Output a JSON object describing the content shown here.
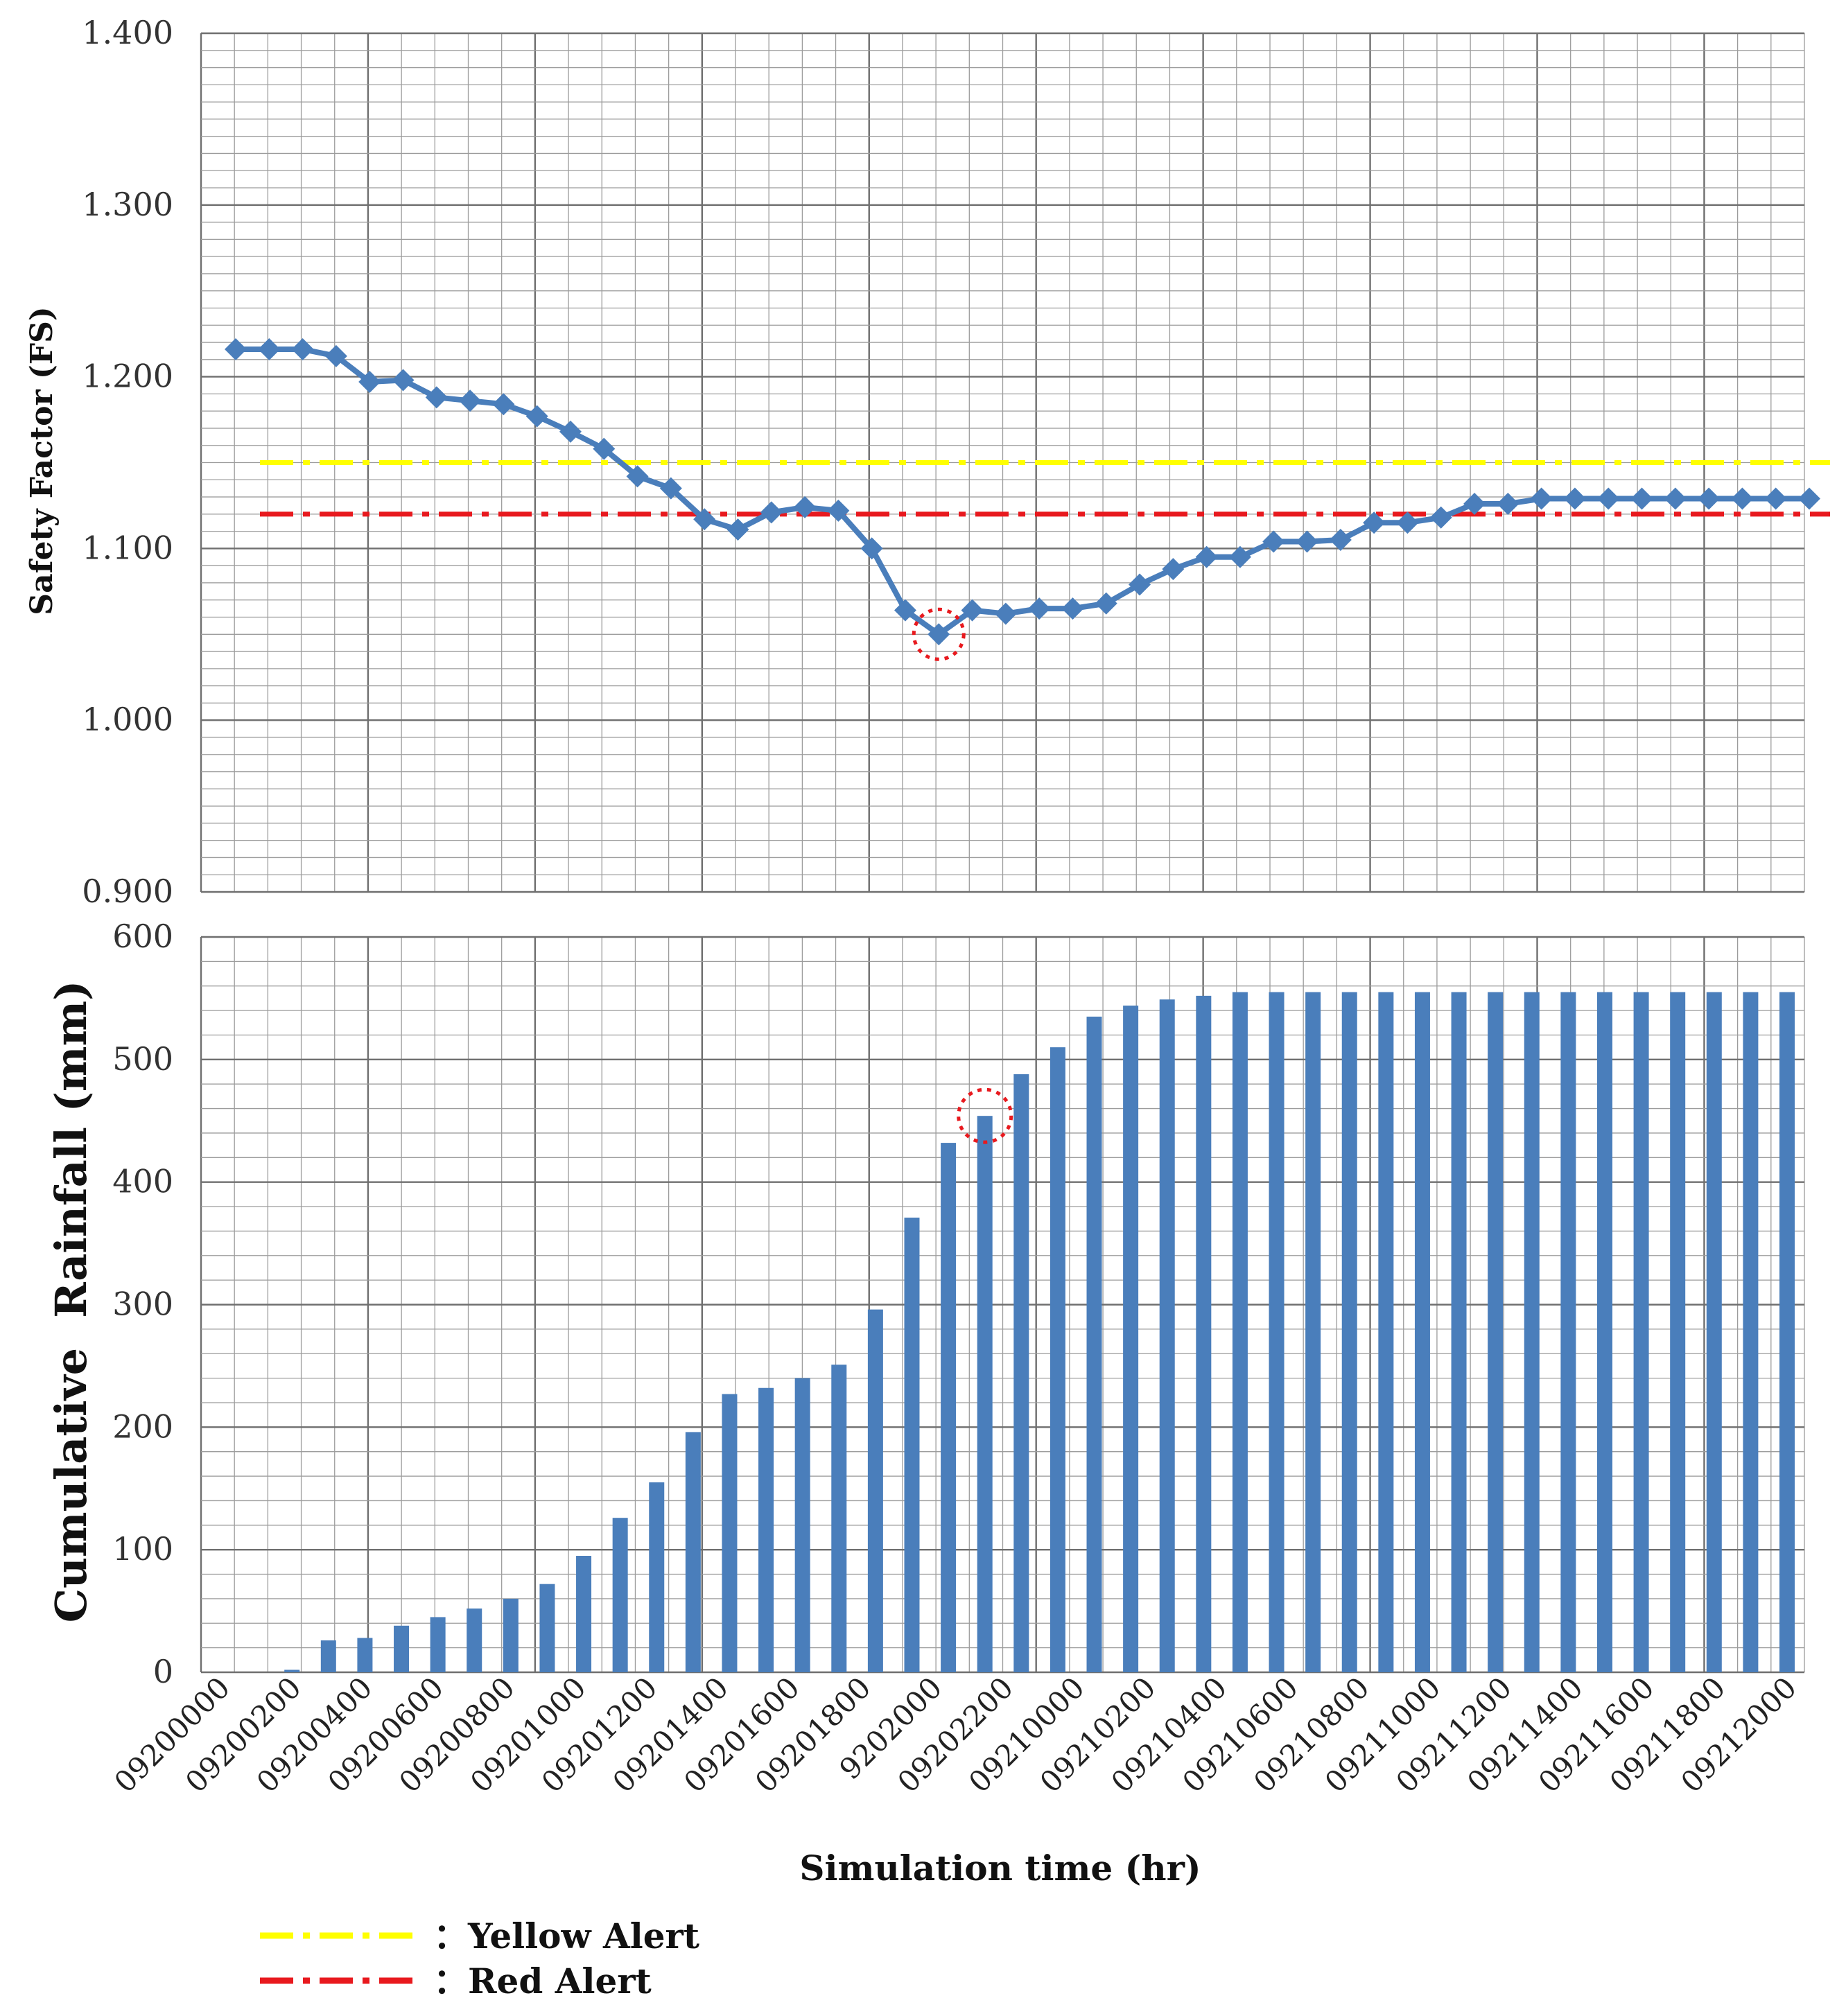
{
  "chart_data": [
    {
      "type": "line",
      "title": "",
      "xlabel": "",
      "ylabel": "Safety Factor (FS)",
      "ylim": [
        0.9,
        1.4
      ],
      "yticks": [
        "1.400",
        "1.300",
        "1.200",
        "1.100",
        "1.000",
        "0.900"
      ],
      "grid": true,
      "series": [
        {
          "name": "Safety Factor",
          "color": "#4a7ebb",
          "values": [
            1.216,
            1.216,
            1.216,
            1.212,
            1.197,
            1.198,
            1.188,
            1.186,
            1.184,
            1.177,
            1.168,
            1.158,
            1.142,
            1.135,
            1.117,
            1.111,
            1.121,
            1.124,
            1.122,
            1.1,
            1.064,
            1.05,
            1.064,
            1.062,
            1.065,
            1.065,
            1.068,
            1.079,
            1.088,
            1.095,
            1.095,
            1.104,
            1.104,
            1.105,
            1.115,
            1.115,
            1.118,
            1.126,
            1.126,
            1.129,
            1.129,
            1.129,
            1.129,
            1.129,
            1.129,
            1.129,
            1.129,
            1.129
          ]
        }
      ],
      "reference_lines": [
        {
          "name": "Yellow Alert",
          "value": 1.15,
          "color": "#ffff00"
        },
        {
          "name": "Red Alert",
          "value": 1.12,
          "color": "#e8191e"
        }
      ],
      "highlight_index": 21
    },
    {
      "type": "bar",
      "title": "",
      "xlabel": "Simulation time (hr)",
      "ylabel": "Cumulative  Rainfall (mm)",
      "ylim": [
        0,
        600
      ],
      "yticks": [
        "600",
        "500",
        "400",
        "300",
        "200",
        "100",
        "0"
      ],
      "grid": true,
      "bar_color": "#4a7ebb",
      "values": [
        0,
        0,
        2,
        26,
        28,
        38,
        45,
        52,
        60,
        72,
        95,
        126,
        155,
        196,
        227,
        232,
        240,
        251,
        296,
        371,
        432,
        454,
        488,
        510,
        535,
        544,
        549,
        552,
        555,
        555,
        555,
        555,
        555,
        555,
        555,
        555,
        555,
        555,
        555,
        555,
        555,
        555,
        555,
        555
      ],
      "x_tick_labels": [
        "09200000",
        "09200200",
        "09200400",
        "09200600",
        "09200800",
        "09201000",
        "09201200",
        "09201400",
        "09201600",
        "09201800",
        "9202000",
        "09202200",
        "09210000",
        "09210200",
        "09210400",
        "09210600",
        "09210800",
        "09211000",
        "09211200",
        "09211400",
        "09211600",
        "09211800",
        "09212000"
      ],
      "highlight_index": 21
    }
  ],
  "legend": {
    "items": [
      {
        "label": "：Yellow Alert",
        "color": "#ffff00"
      },
      {
        "label": "：Red Alert",
        "color": "#e8191e"
      }
    ]
  }
}
